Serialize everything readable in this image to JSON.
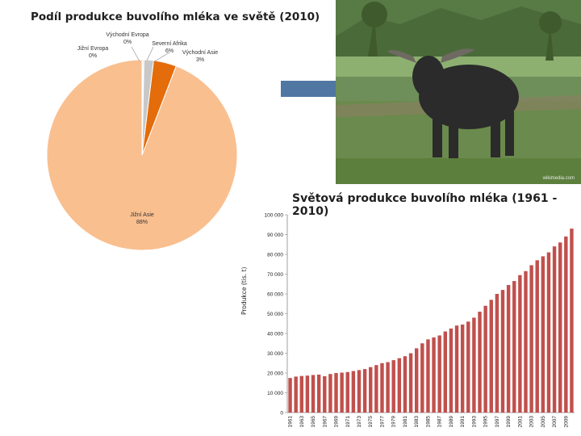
{
  "pie_chart": {
    "title": "Podíl produkce buvolího mléka ve světě (2010)",
    "labels": [
      {
        "name": "Jižní Asie",
        "pct": "88%"
      },
      {
        "name": "Jižní Evropa",
        "pct": "0%"
      },
      {
        "name": "Východní Evropa",
        "pct": "0%"
      },
      {
        "name": "Severní Afrika",
        "pct": "6%"
      },
      {
        "name": "Východní Asie",
        "pct": "3%"
      }
    ]
  },
  "bar_chart": {
    "title": "Světová produkce buvolího mléka (1961 - 2010)",
    "ylabel": "Produkce (tis. t)"
  },
  "photo": {
    "credit": "wikimedia.com"
  },
  "colors": {
    "pie_south_asia": "#f9bf8f",
    "pie_north_africa": "#e46c0a",
    "pie_east_asia": "#c8c8c8",
    "bars": "#c0504d",
    "accent_bar": "#4f77a2"
  },
  "chart_data": [
    {
      "type": "pie",
      "title": "Podíl produkce buvolího mléka ve světě (2010)",
      "slices": [
        {
          "label": "Jižní Asie",
          "value": 88
        },
        {
          "label": "Jižní Evropa",
          "value": 0
        },
        {
          "label": "Východní Evropa",
          "value": 0
        },
        {
          "label": "Severní Afrika",
          "value": 6
        },
        {
          "label": "Východní Asie",
          "value": 3
        }
      ]
    },
    {
      "type": "bar",
      "title": "Světová produkce buvolího mléka (1961 - 2010)",
      "ylabel": "Produkce (tis. t)",
      "ylim": [
        0,
        100000
      ],
      "yticks": [
        "0",
        "10 000",
        "20 000",
        "30 000",
        "40 000",
        "50 000",
        "60 000",
        "70 000",
        "80 000",
        "90 000",
        "100 000"
      ],
      "categories": [
        "1961",
        "1962",
        "1963",
        "1964",
        "1965",
        "1966",
        "1967",
        "1968",
        "1969",
        "1970",
        "1971",
        "1972",
        "1973",
        "1974",
        "1975",
        "1976",
        "1977",
        "1978",
        "1979",
        "1980",
        "1981",
        "1982",
        "1983",
        "1984",
        "1985",
        "1986",
        "1987",
        "1988",
        "1989",
        "1990",
        "1991",
        "1992",
        "1993",
        "1994",
        "1995",
        "1996",
        "1997",
        "1998",
        "1999",
        "2000",
        "2001",
        "2002",
        "2003",
        "2004",
        "2005",
        "2006",
        "2007",
        "2008",
        "2009",
        "2010"
      ],
      "xtick_labels": [
        "1961",
        "1963",
        "1965",
        "1967",
        "1969",
        "1971",
        "1973",
        "1975",
        "1977",
        "1979",
        "1981",
        "1983",
        "1985",
        "1987",
        "1989",
        "1991",
        "1993",
        "1995",
        "1997",
        "1999",
        "2001",
        "2003",
        "2005",
        "2007",
        "2009"
      ],
      "values": [
        17500,
        18200,
        18500,
        18700,
        19000,
        19200,
        18400,
        19500,
        20000,
        20200,
        20500,
        21000,
        21500,
        22000,
        23000,
        24000,
        25000,
        25500,
        26500,
        27500,
        28500,
        30000,
        32500,
        35000,
        37000,
        38000,
        39000,
        41000,
        42500,
        44000,
        44500,
        46000,
        48000,
        51000,
        54000,
        57000,
        60000,
        62000,
        64500,
        66500,
        69500,
        71500,
        74500,
        77000,
        79000,
        81000,
        84000,
        86000,
        89000,
        93000
      ]
    }
  ]
}
